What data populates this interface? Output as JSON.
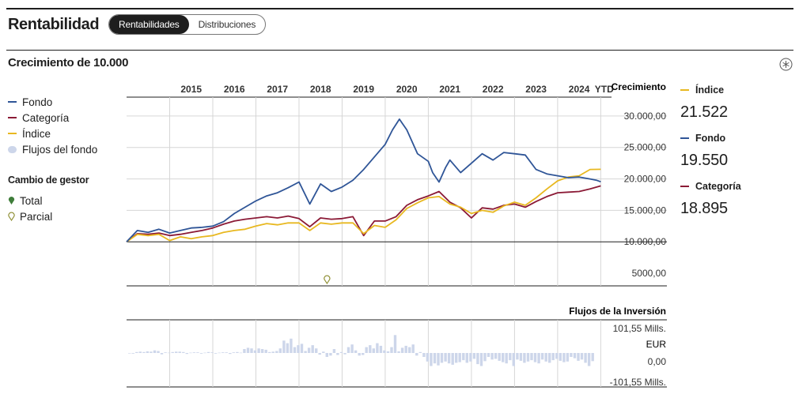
{
  "header": {
    "title": "Rentabilidad",
    "tabs": [
      {
        "label": "Rentabilidades",
        "active": true
      },
      {
        "label": "Distribuciones",
        "active": false
      }
    ]
  },
  "section": {
    "title": "Crecimiento de 10.000",
    "settings_icon": "settings-icon"
  },
  "legend": {
    "items": [
      {
        "label": "Fondo",
        "color": "#2f5597",
        "shape": "line"
      },
      {
        "label": "Categoría",
        "color": "#8b1a36",
        "shape": "line"
      },
      {
        "label": "Índice",
        "color": "#e8b820",
        "shape": "line"
      },
      {
        "label": "Flujos del fondo",
        "color": "#cdd6ea",
        "shape": "dot"
      }
    ],
    "manager_change_title": "Cambio de gestor",
    "manager_items": [
      {
        "label": "Total",
        "icon": "filled-marker-icon",
        "color": "#3f7d3a"
      },
      {
        "label": "Parcial",
        "icon": "hollow-marker-icon",
        "color": "#8a8a2a"
      }
    ]
  },
  "results": [
    {
      "label": "Índice",
      "value": "21.522",
      "color": "#e8b820"
    },
    {
      "label": "Fondo",
      "value": "19.550",
      "color": "#2f5597"
    },
    {
      "label": "Categoría",
      "value": "18.895",
      "color": "#8b1a36"
    }
  ],
  "chart_data": [
    {
      "type": "line",
      "title": "Crecimiento de 10.000",
      "ylabel": "Crecimiento",
      "ylim": [
        3000,
        33000
      ],
      "categories": [
        "2015",
        "2016",
        "2017",
        "2018",
        "2019",
        "2020",
        "2021",
        "2022",
        "2023",
        "2024",
        "YTD"
      ],
      "y_ticks": [
        {
          "value": 30000,
          "label": "30.000,00"
        },
        {
          "value": 25000,
          "label": "25.000,00"
        },
        {
          "value": 20000,
          "label": "20.000,00"
        },
        {
          "value": 15000,
          "label": "15.000,00"
        },
        {
          "value": 10000,
          "label": "10.000,00"
        },
        {
          "value": 5000,
          "label": "5000,00"
        }
      ],
      "manager_change": [
        {
          "type": "Parcial",
          "year": 2018.65
        }
      ],
      "series": [
        {
          "name": "Fondo",
          "color": "#2f5597",
          "x": [
            2014.0,
            2014.25,
            2014.5,
            2014.75,
            2015.0,
            2015.25,
            2015.5,
            2015.75,
            2016.0,
            2016.25,
            2016.5,
            2016.75,
            2017.0,
            2017.25,
            2017.5,
            2017.75,
            2018.0,
            2018.25,
            2018.5,
            2018.75,
            2019.0,
            2019.25,
            2019.5,
            2019.75,
            2020.0,
            2020.17,
            2020.33,
            2020.5,
            2020.75,
            2021.0,
            2021.1,
            2021.25,
            2021.4,
            2021.5,
            2021.75,
            2022.0,
            2022.25,
            2022.5,
            2022.75,
            2023.0,
            2023.25,
            2023.5,
            2023.75,
            2024.0,
            2024.25,
            2024.5,
            2024.75,
            2024.9,
            2025.0
          ],
          "values": [
            10000,
            11800,
            11500,
            12000,
            11400,
            11800,
            12200,
            12300,
            12500,
            13200,
            14500,
            15500,
            16500,
            17300,
            17800,
            18600,
            19500,
            16000,
            19200,
            18000,
            18700,
            19800,
            21500,
            23500,
            25500,
            27800,
            29500,
            27800,
            24000,
            22800,
            21000,
            19500,
            21800,
            23000,
            21000,
            22500,
            24000,
            23000,
            24200,
            24000,
            23800,
            21500,
            20800,
            20500,
            20200,
            20300,
            20000,
            19800,
            19550
          ]
        },
        {
          "name": "Categoría",
          "color": "#8b1a36",
          "x": [
            2014.0,
            2014.25,
            2014.5,
            2014.75,
            2015.0,
            2015.25,
            2015.5,
            2015.75,
            2016.0,
            2016.25,
            2016.5,
            2016.75,
            2017.0,
            2017.25,
            2017.5,
            2017.75,
            2018.0,
            2018.25,
            2018.5,
            2018.75,
            2019.0,
            2019.25,
            2019.5,
            2019.75,
            2020.0,
            2020.25,
            2020.5,
            2020.75,
            2021.0,
            2021.25,
            2021.5,
            2021.75,
            2022.0,
            2022.25,
            2022.5,
            2022.75,
            2023.0,
            2023.25,
            2023.5,
            2023.75,
            2024.0,
            2024.25,
            2024.5,
            2024.75,
            2025.0
          ],
          "values": [
            10000,
            11300,
            11200,
            11400,
            11000,
            11200,
            11500,
            11800,
            12200,
            12800,
            13300,
            13600,
            13800,
            14000,
            13800,
            14100,
            13700,
            12400,
            13800,
            13600,
            13700,
            14000,
            11000,
            13300,
            13300,
            14000,
            15800,
            16700,
            17300,
            18000,
            16300,
            15400,
            13800,
            15400,
            15200,
            15800,
            16000,
            15500,
            16400,
            17200,
            17800,
            17900,
            18000,
            18400,
            18895
          ]
        },
        {
          "name": "Índice",
          "color": "#e8b820",
          "x": [
            2014.0,
            2014.25,
            2014.5,
            2014.75,
            2015.0,
            2015.25,
            2015.5,
            2015.75,
            2016.0,
            2016.25,
            2016.5,
            2016.75,
            2017.0,
            2017.25,
            2017.5,
            2017.75,
            2018.0,
            2018.25,
            2018.5,
            2018.75,
            2019.0,
            2019.25,
            2019.5,
            2019.75,
            2020.0,
            2020.25,
            2020.5,
            2020.75,
            2021.0,
            2021.25,
            2021.5,
            2021.75,
            2022.0,
            2022.25,
            2022.5,
            2022.75,
            2023.0,
            2023.25,
            2023.5,
            2023.75,
            2024.0,
            2024.25,
            2024.5,
            2024.75,
            2025.0
          ],
          "values": [
            10000,
            11200,
            11000,
            11200,
            10200,
            10800,
            10500,
            10800,
            11000,
            11500,
            11800,
            12000,
            12500,
            12900,
            12700,
            13000,
            13000,
            11800,
            13000,
            12800,
            13000,
            13000,
            11300,
            12600,
            12300,
            13500,
            15300,
            16200,
            17000,
            17200,
            16000,
            15500,
            14500,
            15000,
            14700,
            15700,
            16300,
            15800,
            17000,
            18400,
            19700,
            20300,
            20500,
            21500,
            21522
          ]
        }
      ]
    },
    {
      "type": "bar",
      "title": "Flujos de la Inversión",
      "ylabel": "Flujos del fondo",
      "unit": "EUR",
      "ylim": [
        -101.55,
        101.55
      ],
      "y_ticks": [
        {
          "value": 101.55,
          "label": "101,55 Mills."
        },
        {
          "value": 0,
          "label": "0,00"
        },
        {
          "value": -101.55,
          "label": "-101,55 Mills."
        }
      ],
      "unit_label": "EUR",
      "series": [
        {
          "name": "Flujos del fondo",
          "color": "#cdd6ea",
          "values": [
            0,
            -2,
            3,
            4,
            3,
            5,
            4,
            8,
            6,
            -4,
            2,
            1,
            3,
            4,
            4,
            3,
            -3,
            1,
            2,
            2,
            -2,
            1,
            3,
            2,
            -2,
            1,
            2,
            2,
            -3,
            2,
            3,
            1,
            12,
            16,
            14,
            8,
            14,
            12,
            10,
            3,
            4,
            6,
            14,
            38,
            30,
            44,
            18,
            24,
            28,
            6,
            16,
            24,
            14,
            -5,
            4,
            -12,
            -8,
            12,
            -6,
            3,
            -4,
            18,
            26,
            8,
            -8,
            -6,
            18,
            24,
            14,
            30,
            22,
            8,
            5,
            18,
            55,
            5,
            16,
            22,
            18,
            26,
            -8,
            3,
            -12,
            -26,
            -40,
            -32,
            -38,
            -30,
            -26,
            -32,
            -36,
            -30,
            -28,
            -22,
            -30,
            -26,
            -18,
            -34,
            -40,
            -25,
            -12,
            -20,
            -18,
            -24,
            -28,
            -32,
            -22,
            -40,
            -20,
            -24,
            -30,
            -26,
            -22,
            -28,
            -32,
            -20,
            -26,
            -30,
            -22,
            -18,
            -24,
            -28,
            -26,
            -12,
            -16,
            -24,
            -20,
            -30,
            -40,
            -25
          ]
        }
      ]
    }
  ]
}
